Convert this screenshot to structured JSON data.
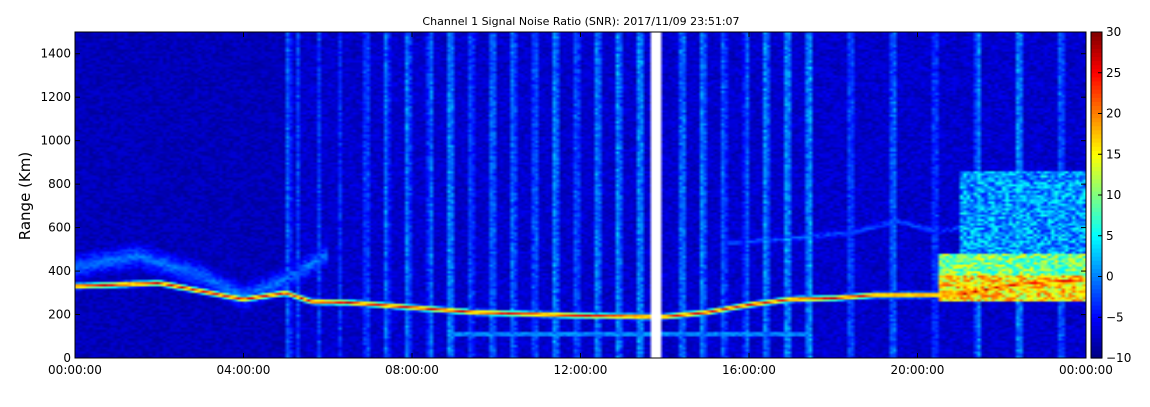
{
  "chart_data": {
    "type": "heatmap",
    "title": "Channel 1 Signal Noise Ratio (SNR): 2017/11/09 23:51:07",
    "xlabel": "",
    "ylabel": "Range (Km)",
    "x_tick_labels": [
      "00:00:00",
      "04:00:00",
      "08:00:00",
      "12:00:00",
      "16:00:00",
      "20:00:00",
      "00:00:00"
    ],
    "x_ticks_hours": [
      0,
      4,
      8,
      12,
      16,
      20,
      24
    ],
    "xlim_hours": [
      0,
      24
    ],
    "ylim": [
      0,
      1500
    ],
    "y_ticks": [
      0,
      200,
      400,
      600,
      800,
      1000,
      1200,
      1400
    ],
    "y_tick_labels": [
      "0",
      "200",
      "400",
      "600",
      "800",
      "1000",
      "1200",
      "1400"
    ],
    "colorbar": {
      "colormap": "jet",
      "range": [
        -10,
        30
      ],
      "ticks": [
        -10,
        -5,
        0,
        5,
        10,
        15,
        20,
        25,
        30
      ],
      "tick_labels": [
        "−10",
        "−5",
        "0",
        "5",
        "10",
        "15",
        "20",
        "25",
        "30"
      ]
    },
    "background_snr": -9,
    "data_gap_hours": [
      13.65,
      13.9
    ],
    "features": [
      {
        "name": "lower_layer_trace",
        "points": [
          [
            0,
            330
          ],
          [
            2,
            345
          ],
          [
            4,
            270
          ],
          [
            5,
            300
          ],
          [
            5.6,
            260
          ],
          [
            6.5,
            255
          ],
          [
            7.5,
            240
          ],
          [
            8.5,
            225
          ],
          [
            9.5,
            210
          ],
          [
            12,
            195
          ],
          [
            13.6,
            190
          ],
          [
            14,
            190
          ],
          [
            15,
            210
          ],
          [
            16,
            245
          ],
          [
            17,
            270
          ],
          [
            18,
            275
          ],
          [
            19,
            290
          ],
          [
            20,
            290
          ],
          [
            21,
            290
          ],
          [
            22,
            330
          ],
          [
            23,
            350
          ],
          [
            24,
            360
          ]
        ],
        "snr": 24
      },
      {
        "name": "spread_layer",
        "points": [
          [
            0,
            420
          ],
          [
            1.5,
            470
          ],
          [
            3,
            380
          ],
          [
            4,
            280
          ],
          [
            5,
            360
          ],
          [
            6,
            480
          ]
        ],
        "snr": 4
      },
      {
        "name": "e_layer",
        "points": [
          [
            8.8,
            110
          ],
          [
            17.5,
            110
          ]
        ],
        "snr": 9
      },
      {
        "name": "high_trace",
        "points": [
          [
            15.5,
            530
          ],
          [
            17,
            550
          ],
          [
            18.5,
            580
          ],
          [
            19.5,
            630
          ],
          [
            20.5,
            580
          ],
          [
            21.5,
            620
          ],
          [
            22.5,
            680
          ],
          [
            23.5,
            700
          ],
          [
            24,
            720
          ]
        ],
        "snr": 3
      }
    ],
    "vertical_stripes_hours": [
      5.1,
      5.3,
      5.8,
      6.3,
      6.9,
      7.4,
      7.9,
      8.4,
      8.9,
      9.4,
      9.9,
      10.4,
      10.9,
      11.4,
      11.9,
      12.4,
      12.9,
      13.4,
      14.4,
      14.9,
      15.4,
      15.9,
      16.4,
      16.9,
      17.4,
      18.4,
      19.4,
      20.4,
      21.4,
      22.4,
      23.4
    ]
  }
}
